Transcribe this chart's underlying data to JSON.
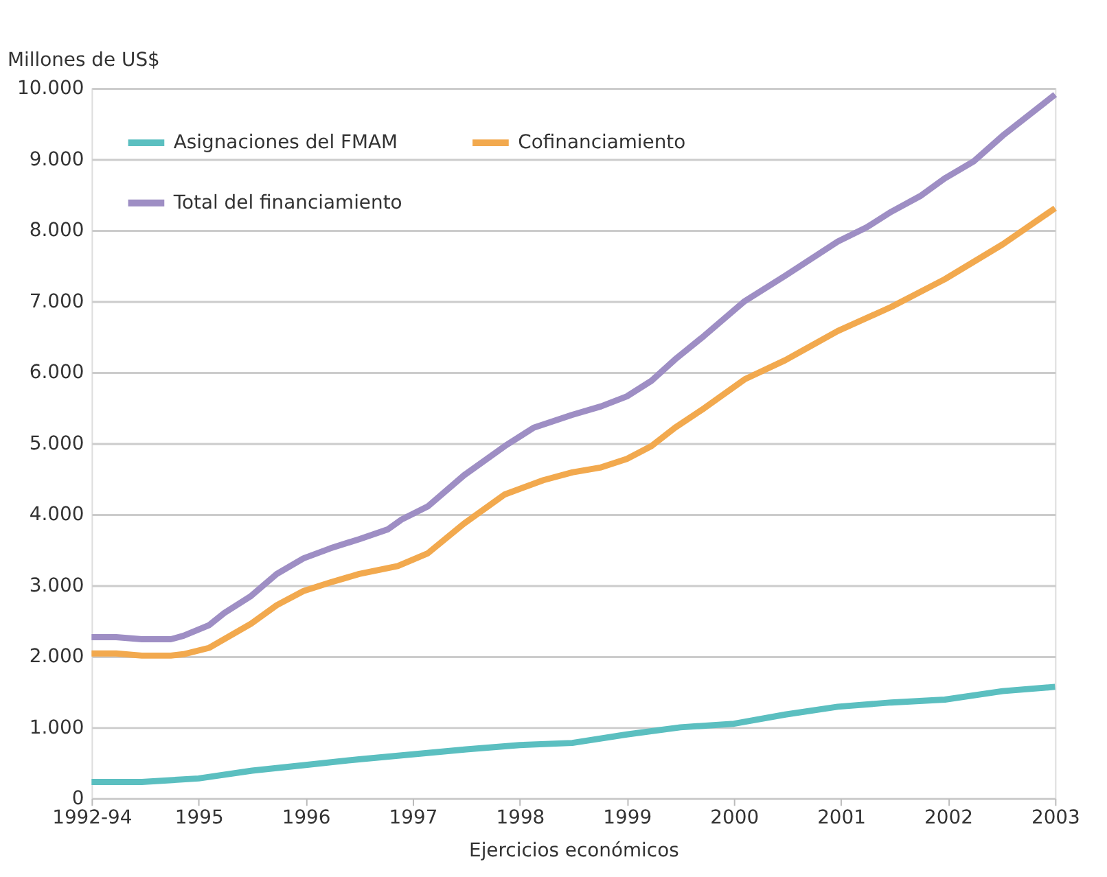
{
  "chart_data": {
    "type": "line",
    "xlabel": "Ejercicios económicos",
    "ylabel": "Millones de US$",
    "xlim": [
      1994,
      2003
    ],
    "xticks": [
      {
        "value": 1994,
        "label": "1992-94"
      },
      1995,
      1996,
      1997,
      1998,
      1999,
      2000,
      2001,
      2002,
      2003
    ],
    "ylim": [
      0,
      10000
    ],
    "yticks": [
      0,
      {
        "value": 1000,
        "label": "1.000"
      },
      {
        "value": 2000,
        "label": "2.000"
      },
      {
        "value": 3000,
        "label": "3.000"
      },
      {
        "value": 4000,
        "label": "4.000"
      },
      {
        "value": 5000,
        "label": "5.000"
      },
      {
        "value": 6000,
        "label": "6.000"
      },
      {
        "value": 7000,
        "label": "7.000"
      },
      {
        "value": 8000,
        "label": "8.000"
      },
      {
        "value": 9000,
        "label": "9.000"
      },
      {
        "value": 10000,
        "label": "10.000"
      }
    ],
    "grid": "y",
    "legend": "top left",
    "marker": "none",
    "line_style": "solid",
    "series": [
      {
        "name": "Asignaciones del FMAM",
        "color": "#5bbfc0",
        "x": [
          1994,
          1994.47,
          1995,
          1995.5,
          1996,
          1996.5,
          1997,
          1997.5,
          1998,
          1998.49,
          1999,
          1999.5,
          2000,
          2000.48,
          2000.97,
          2001.47,
          2001.97,
          2002.51,
          2003
        ],
        "values": [
          230,
          230,
          280,
          390,
          470,
          550,
          620,
          690,
          750,
          780,
          900,
          1000,
          1050,
          1180,
          1290,
          1350,
          1390,
          1510,
          1570
        ]
      },
      {
        "name": "Cofinanciamiento",
        "color": "#f2a94e",
        "x": [
          1994,
          1994.23,
          1994.47,
          1994.74,
          1994.86,
          1995.1,
          1995.49,
          1995.73,
          1995.98,
          1996.23,
          1996.5,
          1996.86,
          1997.14,
          1997.48,
          1997.86,
          1998.22,
          1998.49,
          1998.76,
          1999,
          1999.23,
          1999.45,
          1999.72,
          2000.1,
          2000.48,
          2000.97,
          2001.47,
          2001.97,
          2002.51,
          2003
        ],
        "values": [
          2040,
          2040,
          2010,
          2010,
          2030,
          2120,
          2460,
          2720,
          2920,
          3040,
          3160,
          3270,
          3450,
          3870,
          4280,
          4480,
          4590,
          4660,
          4780,
          4960,
          5220,
          5490,
          5900,
          6170,
          6580,
          6920,
          7310,
          7800,
          8310
        ]
      },
      {
        "name": "Total del financiamiento",
        "color": "#9e8ec4",
        "x": [
          1994,
          1994.23,
          1994.47,
          1994.74,
          1994.86,
          1995.1,
          1995.24,
          1995.49,
          1995.73,
          1995.98,
          1996.23,
          1996.5,
          1996.77,
          1996.9,
          1997.14,
          1997.48,
          1997.86,
          1998.13,
          1998.49,
          1998.76,
          1999,
          1999.23,
          1999.45,
          1999.72,
          2000.1,
          2000.48,
          2000.97,
          2001.24,
          2001.47,
          2001.74,
          2001.97,
          2002.24,
          2002.51,
          2003
        ],
        "values": [
          2270,
          2270,
          2240,
          2240,
          2290,
          2440,
          2610,
          2850,
          3160,
          3380,
          3520,
          3650,
          3790,
          3930,
          4110,
          4550,
          4960,
          5220,
          5400,
          5520,
          5660,
          5880,
          6180,
          6510,
          7000,
          7360,
          7840,
          8040,
          8260,
          8480,
          8730,
          8970,
          9330,
          9910
        ]
      }
    ]
  }
}
